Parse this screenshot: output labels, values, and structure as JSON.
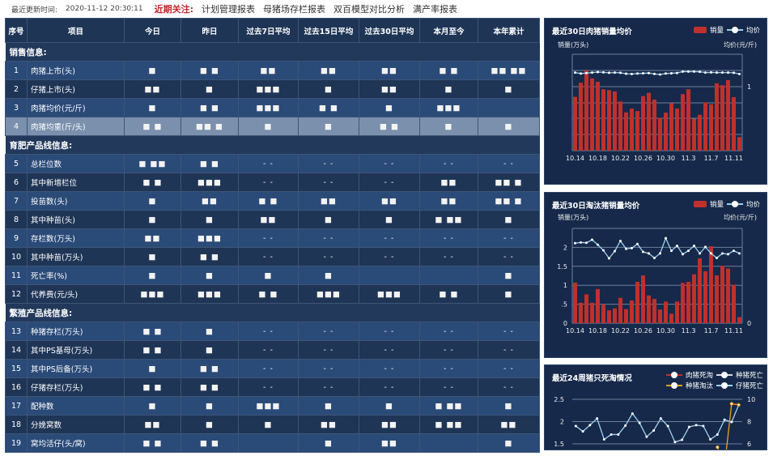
{
  "topbar": {
    "update_label": "最近更新时间:",
    "update_time": "2020-11-12 20:30:11",
    "focus_label": "近期关注:",
    "links": [
      "计划管理报表",
      "母猪场存栏报表",
      "双百模型对比分析",
      "满产率报表"
    ]
  },
  "table": {
    "headers": [
      "序号",
      "项目",
      "今日",
      "昨日",
      "过去7日平均",
      "过去15日平均",
      "过去30日平均",
      "本月至今",
      "本年累计"
    ],
    "sections": [
      {
        "title": "销售信息:",
        "rows": [
          {
            "no": "1",
            "item": "肉猪上市(头)",
            "values": [
              "■",
              "■ ■",
              "■■",
              "■■",
              "■■",
              "■ ■",
              "■■ ■■"
            ]
          },
          {
            "no": "2",
            "item": "仔猪上市(头)",
            "values": [
              "■■",
              "■",
              "■■■",
              "■",
              "■■",
              "■",
              "■"
            ]
          },
          {
            "no": "3",
            "item": "肉猪均价(元/斤)",
            "values": [
              "■",
              "■ ■",
              "■■■",
              "■ ■",
              "■",
              "■■■",
              ""
            ]
          },
          {
            "no": "4",
            "item": "肉猪均重(斤/头)",
            "values": [
              "■ ■",
              "■■ ■",
              "■",
              "■",
              "■ ■",
              "■",
              "■"
            ],
            "highlighted": true
          }
        ]
      },
      {
        "title": "育肥产品线信息:",
        "rows": [
          {
            "no": "5",
            "item": "总栏位数",
            "values": [
              "■ ■■",
              "■ ■",
              "- -",
              "- -",
              "- -",
              "- -",
              "- -"
            ]
          },
          {
            "no": "6",
            "item": "其中新增栏位",
            "values": [
              "■ ■",
              "■■■",
              "- -",
              "- -",
              "- -",
              "■■",
              "■■ ■"
            ]
          },
          {
            "no": "7",
            "item": "投苗数(头)",
            "values": [
              "■",
              "■■",
              "■ ■",
              "■■",
              "■■",
              "■■",
              "■■ ■"
            ]
          },
          {
            "no": "8",
            "item": "其中种苗(头)",
            "values": [
              "■",
              "■",
              "■■",
              "■",
              "■",
              "■ ■■",
              "■"
            ]
          },
          {
            "no": "9",
            "item": "存栏数(万头)",
            "values": [
              "■■",
              "■■■",
              "- -",
              "- -",
              "- -",
              "- -",
              "- -"
            ]
          },
          {
            "no": "10",
            "item": "其中种苗(万头)",
            "values": [
              "■",
              "■ ■",
              "- -",
              "- -",
              "- -",
              "- -",
              "- -"
            ]
          },
          {
            "no": "11",
            "item": "死亡率(%)",
            "values": [
              "■",
              "■",
              "■",
              "■",
              "",
              "",
              "■"
            ]
          },
          {
            "no": "12",
            "item": "代养费(元/头)",
            "values": [
              "■■■",
              "■■■",
              "■ ■",
              "■■■",
              "■■■",
              "■ ■",
              "■"
            ]
          }
        ]
      },
      {
        "title": "繁殖产品线信息:",
        "rows": [
          {
            "no": "13",
            "item": "种猪存栏(万头)",
            "values": [
              "■ ■",
              "■",
              "- -",
              "- -",
              "- -",
              "- -",
              "- -"
            ]
          },
          {
            "no": "14",
            "item": "其中PS基母(万头)",
            "values": [
              "■ ■",
              "■",
              "- -",
              "- -",
              "- -",
              "- -",
              "- -"
            ]
          },
          {
            "no": "15",
            "item": "其中PS后备(万头)",
            "values": [
              "■",
              "■ ■",
              "- -",
              "- -",
              "- -",
              "- -",
              "- -"
            ]
          },
          {
            "no": "16",
            "item": "仔猪存栏(万头)",
            "values": [
              "■ ■",
              "■ ■",
              "- -",
              "- -",
              "- -",
              "- -",
              "- -"
            ]
          },
          {
            "no": "17",
            "item": "配种数",
            "values": [
              "■",
              "■",
              "■■■",
              "■",
              "■",
              "■ ■■",
              "■"
            ]
          },
          {
            "no": "18",
            "item": "分娩窝数",
            "values": [
              "■■",
              "■",
              "■",
              "■■",
              "■■",
              "■ ■■",
              "■■"
            ]
          },
          {
            "no": "19",
            "item": "窝均活仔(头/窝)",
            "values": [
              "■ ■",
              "■ ■",
              "",
              "■",
              "■■",
              "",
              "■"
            ]
          }
        ]
      }
    ]
  },
  "colors": {
    "bar": "#c0302c",
    "line": "#9fd2f0",
    "orange": "#f0a020",
    "panel": "#16294a"
  },
  "chart_data": [
    {
      "type": "bar",
      "title": "最近30日肉猪销量均价",
      "ylabel": "销量(万头)",
      "y2label": "均价(元/斤)",
      "legend": [
        "销量",
        "均价"
      ],
      "legend_position": "top-right",
      "categories": [
        "10.14",
        "10.15",
        "10.16",
        "10.17",
        "10.18",
        "10.19",
        "10.20",
        "10.21",
        "10.22",
        "10.23",
        "10.24",
        "10.25",
        "10.26",
        "10.27",
        "10.28",
        "10.29",
        "10.30",
        "10.31",
        "11.1",
        "11.2",
        "11.3",
        "11.4",
        "11.5",
        "11.6",
        "11.7",
        "11.8",
        "11.9",
        "11.10",
        "11.11",
        "11.12"
      ],
      "xticks": [
        "10.14",
        "10.18",
        "10.22",
        "10.26",
        "10.30",
        "11.3",
        "11.7",
        "11.11"
      ],
      "y2ticks": [
        "1"
      ],
      "series": [
        {
          "name": "销量",
          "type": "bar",
          "values": [
            5.58,
            7.04,
            8.31,
            7.49,
            7.15,
            6.37,
            6.28,
            6.14,
            5.1,
            3.97,
            4.37,
            4.11,
            5.66,
            6.0,
            5.3,
            3.41,
            3.94,
            4.93,
            4.37,
            5.86,
            6.37,
            3.32,
            3.72,
            5.01,
            4.82,
            6.99,
            6.79,
            7.32,
            5.55,
            1.41
          ]
        },
        {
          "name": "均价",
          "type": "line",
          "values": [
            8.1,
            8.0,
            8.05,
            8.1,
            8.15,
            8.12,
            8.08,
            8.1,
            8.08,
            7.98,
            7.95,
            8.0,
            8.02,
            8.05,
            7.96,
            7.9,
            8.0,
            8.03,
            8.06,
            8.2,
            8.2,
            8.2,
            8.18,
            8.1,
            8.12,
            8.1,
            8.1,
            8.1,
            8.08,
            7.95
          ]
        }
      ],
      "ylim": [
        0,
        10
      ],
      "grid": true
    },
    {
      "type": "bar",
      "title": "最近30日淘汰猪销量均价",
      "ylabel": "销量(万头)",
      "y2label": "均价(元/斤)",
      "legend": [
        "销量",
        "均价"
      ],
      "legend_position": "top-right",
      "categories": [
        "10.14",
        "10.15",
        "10.16",
        "10.17",
        "10.18",
        "10.19",
        "10.20",
        "10.21",
        "10.22",
        "10.23",
        "10.24",
        "10.25",
        "10.26",
        "10.27",
        "10.28",
        "10.29",
        "10.30",
        "10.31",
        "11.1",
        "11.2",
        "11.3",
        "11.4",
        "11.5",
        "11.6",
        "11.7",
        "11.8",
        "11.9",
        "11.10",
        "11.11",
        "11.12"
      ],
      "xticks": [
        "10.14",
        "10.18",
        "10.22",
        "10.26",
        "10.30",
        "11.3",
        "11.7",
        "11.11"
      ],
      "yticks": [
        "0",
        ".5",
        "1",
        "1.5",
        "2"
      ],
      "y2ticks": [
        "0"
      ],
      "series": [
        {
          "name": "销量",
          "type": "bar",
          "values": [
            1.07,
            0.54,
            0.76,
            0.54,
            0.9,
            0.5,
            0.34,
            0.39,
            0.67,
            0.37,
            0.6,
            1.09,
            1.26,
            0.73,
            0.64,
            0.36,
            0.57,
            0.25,
            0.57,
            1.06,
            1.09,
            1.29,
            1.71,
            1.37,
            2.03,
            1.26,
            1.51,
            1.44,
            1.01,
            0.16
          ]
        },
        {
          "name": "均价",
          "type": "line",
          "values": [
            2.11,
            2.13,
            2.12,
            2.2,
            2.07,
            1.92,
            1.71,
            1.9,
            2.17,
            1.96,
            1.98,
            2.09,
            1.88,
            1.84,
            1.72,
            1.84,
            2.24,
            1.91,
            2.04,
            1.82,
            1.91,
            2.04,
            1.84,
            2.01,
            1.84,
            1.72,
            1.84,
            1.82,
            1.91,
            1.84
          ]
        }
      ],
      "ylim": [
        0,
        2.5
      ],
      "grid": true
    },
    {
      "type": "line",
      "title": "最近24周猪只死淘情况",
      "legend": [
        "肉猪死淘",
        "种猪死亡",
        "种猪淘汰",
        "仔猪死亡"
      ],
      "legend_position": "top-right",
      "yticks": [
        "1.5",
        "2",
        "2.5"
      ],
      "y2ticks": [
        "6",
        "8",
        "10"
      ],
      "ylim": [
        1.5,
        2.5
      ],
      "y2lim": [
        6,
        10
      ],
      "series": [
        {
          "name": "仔猪死亡",
          "axis": "left",
          "values": [
            1.9,
            1.78,
            1.92,
            2.07,
            1.6,
            1.71,
            1.71,
            1.91,
            2.18,
            1.97,
            1.66,
            1.8,
            2.07,
            1.9,
            1.54,
            1.59,
            1.88,
            1.92,
            1.9,
            1.6,
            1.71,
            2.04,
            1.99,
            2.37
          ]
        },
        {
          "name": "种猪淘汰",
          "axis": "right",
          "values": [
            null,
            null,
            null,
            null,
            null,
            null,
            null,
            null,
            null,
            null,
            null,
            null,
            null,
            null,
            null,
            null,
            null,
            null,
            null,
            null,
            5.7,
            4.0,
            9.6,
            9.5
          ]
        }
      ],
      "grid": true
    }
  ]
}
